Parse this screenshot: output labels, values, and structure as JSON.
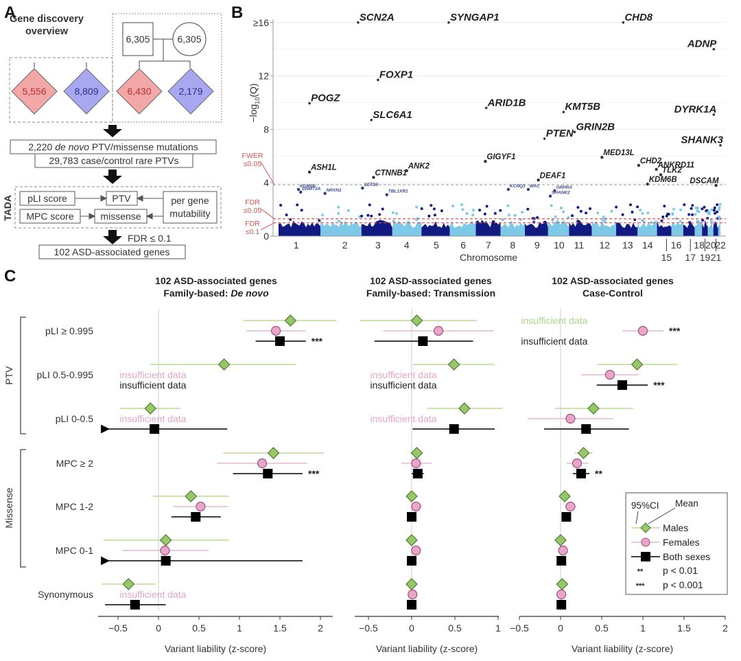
{
  "panel_letters": {
    "a": "A",
    "b": "B",
    "c": "C"
  },
  "panel_a": {
    "title_line1": "Gene discovery",
    "title_line2": "overview",
    "parents": {
      "father": "6,305",
      "mother": "6,305"
    },
    "diamonds": [
      {
        "value": "5,556",
        "color": "#f4a7a7",
        "text_color": "#b0303a",
        "role": "case-control-female"
      },
      {
        "value": "8,809",
        "color": "#a8a8f0",
        "text_color": "#2c2c8c",
        "role": "case-control-male"
      },
      {
        "value": "6,430",
        "color": "#f4a7a7",
        "text_color": "#b0303a",
        "role": "trio-female"
      },
      {
        "value": "2,179",
        "color": "#a8a8f0",
        "text_color": "#2c2c8c",
        "role": "trio-male"
      }
    ],
    "mutations_line1_pre": "2,220 ",
    "mutations_line1_italic": "de novo",
    "mutations_line1_post": " PTV/missense mutations",
    "mutations_line2": "29,783 case/control rare PTVs",
    "tada_label": "TADA",
    "tada_boxes": {
      "pli": "pLI score",
      "mpc": "MPC score",
      "ptv": "PTV",
      "missense": "missense",
      "mut1": "per gene",
      "mut2": "mutability"
    },
    "fdr_label": "FDR ≤ 0.1",
    "result": "102 ASD-associated genes"
  },
  "chart_data": [
    {
      "type": "scatter",
      "id": "manhattan",
      "title": "",
      "xlabel": "Chromosome",
      "ylabel": "−log10(Q)",
      "ylabel_main": "−log",
      "ylabel_sub": "10",
      "ylabel_tail": "(Q)",
      "ylim": [
        0,
        16.5
      ],
      "yticks": [
        0,
        4,
        8,
        12,
        16
      ],
      "ytick_labels": [
        "0",
        "4",
        "8",
        "12",
        "≥16"
      ],
      "chromosomes_top": [
        "1",
        "2",
        "3",
        "4",
        "5",
        "6",
        "7",
        "8",
        "9",
        "10",
        "11",
        "12",
        "13",
        "14",
        "16",
        "18",
        "20",
        "22"
      ],
      "chromosomes_bottom": [
        "15",
        "17",
        "19",
        "21"
      ],
      "chrom_positions": {
        "1": 0.04,
        "2": 0.15,
        "3": 0.225,
        "4": 0.29,
        "5": 0.357,
        "6": 0.418,
        "7": 0.475,
        "8": 0.53,
        "9": 0.585,
        "10": 0.635,
        "11": 0.68,
        "12": 0.738,
        "13": 0.79,
        "14": 0.835,
        "15": 0.878,
        "16": 0.9,
        "17": 0.932,
        "18": 0.952,
        "19": 0.965,
        "20": 0.978,
        "21": 0.99,
        "22": 1.0
      },
      "thresholds": [
        {
          "label_line1": "FWER",
          "label_line2": "≤0.05",
          "value": 3.85,
          "color": "#aaaaaa"
        },
        {
          "label_line1": "FDR",
          "label_line2": "≤0.05",
          "value": 1.3,
          "color": "#d9534f"
        },
        {
          "label_line1": "FDR",
          "label_line2": "≤0.1",
          "value": 1.0,
          "color": "#d9534f"
        }
      ],
      "colors": {
        "dark": "#101a80",
        "light": "#7ec8e8",
        "threshold_text": "#d9534f"
      },
      "labeled_genes": [
        {
          "gene": "SCN2A",
          "x": 0.18,
          "y": 16.0,
          "size": "large"
        },
        {
          "gene": "SYNGAP1",
          "x": 0.385,
          "y": 16.0,
          "size": "large"
        },
        {
          "gene": "CHD8",
          "x": 0.78,
          "y": 16.0,
          "size": "large"
        },
        {
          "gene": "ADNP",
          "x": 0.985,
          "y": 14.0,
          "size": "large"
        },
        {
          "gene": "FOXP1",
          "x": 0.225,
          "y": 11.7,
          "size": "large"
        },
        {
          "gene": "POGZ",
          "x": 0.07,
          "y": 9.95,
          "size": "large"
        },
        {
          "gene": "ARID1B",
          "x": 0.47,
          "y": 9.6,
          "size": "large"
        },
        {
          "gene": "SLC6A1",
          "x": 0.21,
          "y": 8.7,
          "size": "large"
        },
        {
          "gene": "KMT5B",
          "x": 0.645,
          "y": 9.3,
          "size": "large"
        },
        {
          "gene": "DYRK1A",
          "x": 0.985,
          "y": 9.1,
          "size": "large"
        },
        {
          "gene": "PTEN",
          "x": 0.602,
          "y": 7.3,
          "size": "large"
        },
        {
          "gene": "GRIN2B",
          "x": 0.67,
          "y": 7.8,
          "size": "large"
        },
        {
          "gene": "SHANK3",
          "x": 1.0,
          "y": 6.8,
          "size": "large"
        },
        {
          "gene": "ASH1L",
          "x": 0.07,
          "y": 4.8,
          "size": "medium"
        },
        {
          "gene": "CTNNB1",
          "x": 0.215,
          "y": 4.4,
          "size": "medium"
        },
        {
          "gene": "ANK2",
          "x": 0.29,
          "y": 4.9,
          "size": "medium"
        },
        {
          "gene": "GIGYF1",
          "x": 0.468,
          "y": 5.6,
          "size": "medium"
        },
        {
          "gene": "MED13L",
          "x": 0.732,
          "y": 5.9,
          "size": "medium"
        },
        {
          "gene": "CHD2",
          "x": 0.815,
          "y": 5.3,
          "size": "medium"
        },
        {
          "gene": "ANKRD11",
          "x": 0.855,
          "y": 5.0,
          "size": "medium"
        },
        {
          "gene": "TLK2",
          "x": 0.865,
          "y": 4.6,
          "size": "medium"
        },
        {
          "gene": "DEAF1",
          "x": 0.588,
          "y": 4.2,
          "size": "medium"
        },
        {
          "gene": "KDM6B",
          "x": 0.835,
          "y": 3.9,
          "size": "medium"
        },
        {
          "gene": "DSCAM",
          "x": 0.99,
          "y": 3.8,
          "size": "medium"
        },
        {
          "gene": "KDM5B",
          "x": 0.045,
          "y": 3.5,
          "size": "small"
        },
        {
          "gene": "DNMT3A",
          "x": 0.05,
          "y": 3.3,
          "size": "small"
        },
        {
          "gene": "NRXN1",
          "x": 0.105,
          "y": 3.2,
          "size": "small"
        },
        {
          "gene": "SETD5",
          "x": 0.19,
          "y": 3.6,
          "size": "small"
        },
        {
          "gene": "TBL1XR1",
          "x": 0.245,
          "y": 3.1,
          "size": "small"
        },
        {
          "gene": "KCNQ3",
          "x": 0.52,
          "y": 3.5,
          "size": "small"
        },
        {
          "gene": "WAC",
          "x": 0.565,
          "y": 3.5,
          "size": "small"
        },
        {
          "gene": "ORPRA",
          "x": 0.625,
          "y": 3.4,
          "size": "small"
        },
        {
          "gene": "SHANK2",
          "x": 0.615,
          "y": 3.0,
          "size": "small"
        }
      ]
    },
    {
      "type": "scatter",
      "id": "forest-de-novo",
      "title_line1": "102 ASD-associated genes",
      "title_line2_pre": "Family-based: ",
      "title_line2_italic": "De novo",
      "xlabel": "Variant liability (z-score)",
      "xlim": [
        -0.65,
        2.15
      ],
      "xticks": [
        -0.5,
        0,
        0.5,
        1,
        1.5,
        2
      ],
      "xtick_labels": [
        "−0.5",
        "0",
        "0.5",
        "1",
        "1.5",
        "2"
      ],
      "rows": [
        {
          "category": "pLI ≥ 0.995",
          "males": {
            "mean": 1.63,
            "lo": 1.05,
            "hi": 2.2
          },
          "females": {
            "mean": 1.45,
            "lo": 1.08,
            "hi": 1.82
          },
          "both": {
            "mean": 1.5,
            "lo": 1.2,
            "hi": 1.82
          },
          "sig": "***"
        },
        {
          "category": "pLI 0.5-0.995",
          "males": {
            "mean": 0.81,
            "lo": -0.1,
            "hi": 1.7
          },
          "females": null,
          "both": null,
          "insufficient": [
            "females",
            "both"
          ]
        },
        {
          "category": "pLI 0-0.5",
          "males": {
            "mean": -0.1,
            "lo": -0.48,
            "hi": 0.27
          },
          "females": null,
          "both": {
            "mean": -0.05,
            "lo": -0.65,
            "hi": 0.85,
            "arrow_left": true
          },
          "insufficient": [
            "females"
          ]
        },
        {
          "category": "MPC ≥ 2",
          "males": {
            "mean": 1.42,
            "lo": 0.8,
            "hi": 2.04
          },
          "females": {
            "mean": 1.28,
            "lo": 0.72,
            "hi": 1.84
          },
          "both": {
            "mean": 1.35,
            "lo": 0.92,
            "hi": 1.78
          },
          "sig": "***"
        },
        {
          "category": "MPC 1-2",
          "males": {
            "mean": 0.4,
            "lo": -0.07,
            "hi": 0.87
          },
          "females": {
            "mean": 0.52,
            "lo": 0.18,
            "hi": 0.86
          },
          "both": {
            "mean": 0.46,
            "lo": 0.16,
            "hi": 0.77
          }
        },
        {
          "category": "MPC 0-1",
          "males": {
            "mean": 0.09,
            "lo": -0.68,
            "hi": 0.87
          },
          "females": {
            "mean": 0.08,
            "lo": -0.45,
            "hi": 0.62
          },
          "both": {
            "mean": 0.09,
            "lo": -0.65,
            "hi": 1.78,
            "arrow_left": true
          }
        },
        {
          "category": "Synonymous",
          "males": {
            "mean": -0.37,
            "lo": -0.7,
            "hi": -0.04
          },
          "females": null,
          "both": {
            "mean": -0.29,
            "lo": -0.66,
            "hi": 0.09
          },
          "insufficient": [
            "females"
          ]
        }
      ]
    },
    {
      "type": "scatter",
      "id": "forest-transmission",
      "title_line1": "102 ASD-associated genes",
      "title_line2": "Family-based: Transmission",
      "xlabel": "Variant liability (z-score)",
      "xlim": [
        -0.65,
        1.0
      ],
      "xticks": [
        -0.5,
        0,
        0.5,
        1
      ],
      "xtick_labels": [
        "−0.5",
        "0",
        "0.5",
        "1"
      ],
      "rows": [
        {
          "category": "pLI ≥ 0.995",
          "males": {
            "mean": 0.06,
            "lo": -0.6,
            "hi": 0.75
          },
          "females": {
            "mean": 0.31,
            "lo": -0.33,
            "hi": 0.95
          },
          "both": {
            "mean": 0.13,
            "lo": -0.43,
            "hi": 0.71
          }
        },
        {
          "category": "pLI 0.5-0.995",
          "males": {
            "mean": 0.49,
            "lo": 0.01,
            "hi": 0.96
          },
          "females": null,
          "both": null,
          "insufficient": [
            "females",
            "both"
          ]
        },
        {
          "category": "pLI 0-0.5",
          "males": {
            "mean": 0.61,
            "lo": 0.18,
            "hi": 1.05
          },
          "females": null,
          "both": {
            "mean": 0.49,
            "lo": 0.01,
            "hi": 0.96
          },
          "insufficient": [
            "females"
          ]
        },
        {
          "category": "MPC ≥ 2",
          "males": {
            "mean": 0.06,
            "lo": 0.0,
            "hi": 0.12
          },
          "females": {
            "mean": 0.05,
            "lo": -0.12,
            "hi": 0.23
          },
          "both": {
            "mean": 0.07,
            "lo": 0.0,
            "hi": 0.14
          }
        },
        {
          "category": "MPC 1-2",
          "males": {
            "mean": 0.0,
            "lo": -0.02,
            "hi": 0.02
          },
          "females": {
            "mean": 0.05,
            "lo": 0.0,
            "hi": 0.12
          },
          "both": {
            "mean": 0.0,
            "lo": -0.02,
            "hi": 0.02
          }
        },
        {
          "category": "MPC 0-1",
          "males": {
            "mean": 0.0,
            "lo": -0.02,
            "hi": 0.02
          },
          "females": {
            "mean": 0.05,
            "lo": 0.02,
            "hi": 0.08
          },
          "both": {
            "mean": 0.0,
            "lo": -0.02,
            "hi": 0.02
          }
        },
        {
          "category": "Synonymous",
          "males": {
            "mean": 0.0,
            "lo": -0.02,
            "hi": 0.02
          },
          "females": {
            "mean": 0.01,
            "lo": -0.01,
            "hi": 0.03
          },
          "both": {
            "mean": 0.0,
            "lo": -0.02,
            "hi": 0.02
          }
        }
      ]
    },
    {
      "type": "scatter",
      "id": "forest-case-control",
      "title_line1": "102 ASD-associated genes",
      "title_line2": "Case-Control",
      "xlabel": "Variant liability (z-score)",
      "xlim": [
        -0.5,
        2.0
      ],
      "xticks": [
        -0.5,
        0,
        0.5,
        1,
        1.5,
        2
      ],
      "xtick_labels": [
        "−0.5",
        "0",
        "0.5",
        "1",
        "1.5",
        "2"
      ],
      "rows": [
        {
          "category": "pLI ≥ 0.995",
          "males": null,
          "females": {
            "mean": 1.0,
            "lo": 0.75,
            "hi": 1.25
          },
          "both": null,
          "sig_on": "females",
          "sig": "***",
          "insufficient": [
            "males",
            "both"
          ]
        },
        {
          "category": "pLI 0.5-0.995",
          "males": {
            "mean": 0.93,
            "lo": 0.45,
            "hi": 1.42
          },
          "females": {
            "mean": 0.6,
            "lo": 0.25,
            "hi": 0.95
          },
          "both": {
            "mean": 0.75,
            "lo": 0.44,
            "hi": 1.06
          },
          "sig": "***"
        },
        {
          "category": "pLI 0-0.5",
          "males": {
            "mean": 0.4,
            "lo": -0.07,
            "hi": 0.88
          },
          "females": {
            "mean": 0.12,
            "lo": -0.4,
            "hi": 0.64
          },
          "both": {
            "mean": 0.31,
            "lo": -0.2,
            "hi": 0.83
          }
        },
        {
          "category": "MPC ≥ 2",
          "males": {
            "mean": 0.28,
            "lo": 0.17,
            "hi": 0.39
          },
          "females": {
            "mean": 0.2,
            "lo": 0.07,
            "hi": 0.34
          },
          "both": {
            "mean": 0.25,
            "lo": 0.15,
            "hi": 0.35
          },
          "sig": "**"
        },
        {
          "category": "MPC 1-2",
          "males": {
            "mean": 0.05,
            "lo": 0.0,
            "hi": 0.1
          },
          "females": {
            "mean": 0.12,
            "lo": 0.05,
            "hi": 0.19
          },
          "both": {
            "mean": 0.07,
            "lo": 0.02,
            "hi": 0.12
          }
        },
        {
          "category": "MPC 0-1",
          "males": {
            "mean": 0.0,
            "lo": -0.03,
            "hi": 0.03
          },
          "females": {
            "mean": 0.03,
            "lo": -0.02,
            "hi": 0.08
          },
          "both": {
            "mean": 0.01,
            "lo": -0.02,
            "hi": 0.04
          }
        },
        {
          "category": "Synonymous",
          "males": {
            "mean": 0.02,
            "lo": 0.0,
            "hi": 0.04
          },
          "females": {
            "mean": 0.01,
            "lo": -0.01,
            "hi": 0.03
          },
          "both": {
            "mean": 0.01,
            "lo": -0.01,
            "hi": 0.03
          }
        }
      ]
    }
  ],
  "panel_c": {
    "group_labels": {
      "ptv": "PTV",
      "missense": "Missense"
    },
    "insufficient_text": "insufficient data",
    "colors": {
      "males_fill": "#98c66a",
      "males_stroke": "#4d7a2a",
      "males_line": "#b7dc94",
      "females_fill": "#e8a6c8",
      "females_stroke": "#a05080",
      "females_line": "#e3b9cf",
      "both": "#000000",
      "zero_line": "#cccccc",
      "insufficient_female": "#e3a6c6",
      "insufficient_male": "#a8d88a"
    },
    "legend": {
      "ci": "95%CI",
      "mean": "Mean",
      "males": "Males",
      "females": "Females",
      "both": "Both sexes",
      "p01_sym": "**",
      "p01": "p < 0.01",
      "p001_sym": "***",
      "p001": "p < 0.001"
    }
  }
}
